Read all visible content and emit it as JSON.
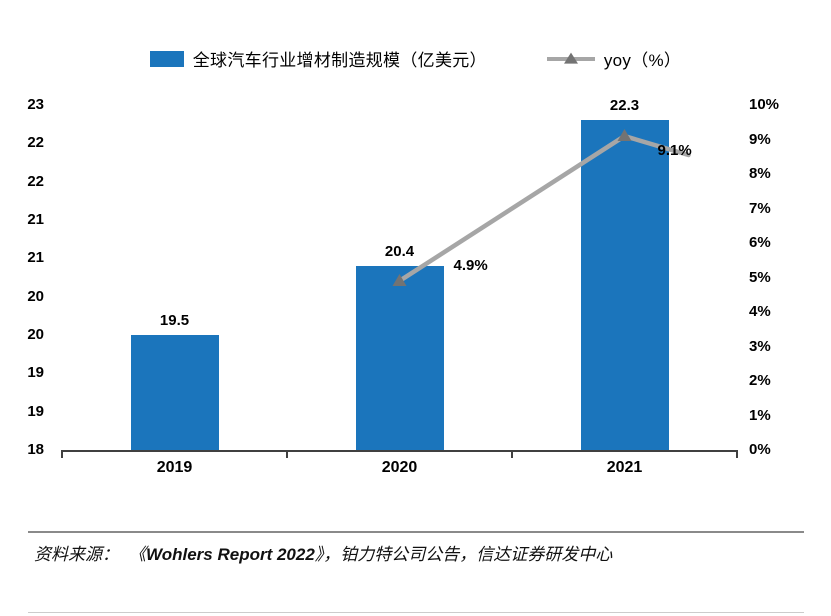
{
  "chart_data": {
    "type": "bar+line",
    "categories": [
      "2019",
      "2020",
      "2021"
    ],
    "series": [
      {
        "name": "全球汽车行业增材制造规模（亿美元）",
        "type": "bar",
        "axis": "left",
        "color": "#1B75BC",
        "values": [
          19.5,
          20.4,
          22.3
        ],
        "data_labels": [
          "19.5",
          "20.4",
          "22.3"
        ]
      },
      {
        "name": "yoy（%）",
        "type": "line",
        "axis": "right",
        "color": "#A6A6A6",
        "marker_color": "#737373",
        "values": [
          null,
          4.9,
          9.1
        ],
        "data_labels": [
          "",
          "4.9%",
          "9.1%"
        ]
      }
    ],
    "left_axis": {
      "min": 18,
      "max": 22.5,
      "step": 0.5,
      "labels_top_to_bottom": [
        "23",
        "22",
        "22",
        "21",
        "21",
        "20",
        "20",
        "19",
        "19",
        "18"
      ]
    },
    "right_axis": {
      "min": 0,
      "max": 10,
      "step": 1,
      "labels_top_to_bottom": [
        "10%",
        "9%",
        "8%",
        "7%",
        "6%",
        "5%",
        "4%",
        "3%",
        "2%",
        "1%",
        "0%"
      ]
    },
    "legend_position": "top",
    "grid": "off"
  },
  "source": {
    "prefix": "资料来源：",
    "open": "《",
    "report": "Wohlers Report 2022",
    "rest": "》，铂力特公司公告，信达证券研发中心"
  }
}
